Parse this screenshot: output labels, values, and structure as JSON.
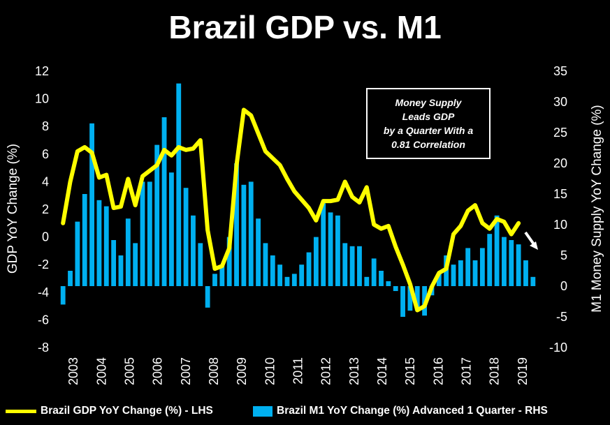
{
  "title": "Brazil GDP vs. M1",
  "annotation": [
    "Money Supply",
    "Leads GDP",
    "by a Quarter With a",
    "0.81 Correlation"
  ],
  "colors": {
    "gdp_line": "#ffff00",
    "m1_bars": "#00b0f0",
    "background": "#000000",
    "arrow": "#ffffff"
  },
  "chart_data": {
    "type": "bar",
    "title": "Brazil GDP vs. M1",
    "xlabel": "",
    "ylabel": "GDP YoY Change (%)",
    "ylabel_right": "M1 Money Supply YoY Change (%)",
    "ylim": [
      -8,
      12
    ],
    "ylim_right": [
      -10,
      35
    ],
    "yticks": [
      "12",
      "10",
      "8",
      "6",
      "4",
      "2",
      "0",
      "-2",
      "-4",
      "-6",
      "-8"
    ],
    "yticks_right": [
      "35",
      "30",
      "25",
      "20",
      "15",
      "10",
      "5",
      "0",
      "-5",
      "-10"
    ],
    "xticks": [
      "2003",
      "2004",
      "2005",
      "2006",
      "2007",
      "2008",
      "2009",
      "2010",
      "2011",
      "2012",
      "2013",
      "2014",
      "2015",
      "2016",
      "2017",
      "2018",
      "2019"
    ],
    "grid": false,
    "legend_position": "bottom",
    "series": [
      {
        "name": "Brazil GDP YoY Change (%) - LHS",
        "type": "line",
        "axis": "left",
        "values": [
          1.0,
          4.0,
          6.2,
          6.5,
          6.1,
          4.3,
          4.5,
          2.1,
          2.2,
          4.2,
          2.3,
          4.4,
          4.8,
          5.2,
          6.3,
          5.9,
          6.5,
          6.3,
          6.4,
          7.0,
          0.5,
          -2.3,
          -2.1,
          -0.8,
          5.2,
          9.2,
          8.8,
          7.5,
          6.2,
          5.7,
          5.2,
          4.2,
          3.3,
          2.7,
          2.1,
          1.2,
          2.6,
          2.6,
          2.7,
          4.0,
          2.9,
          2.5,
          3.6,
          0.9,
          0.6,
          0.8,
          -0.7,
          -2.0,
          -3.4,
          -5.3,
          -5.0,
          -3.6,
          -2.6,
          -2.3,
          0.2,
          0.8,
          1.9,
          2.3,
          1.0,
          0.6,
          1.3,
          1.1,
          0.2,
          1.0
        ]
      },
      {
        "name": "Brazil M1 YoY Change (%) Advanced 1 Quarter - RHS",
        "type": "bar",
        "axis": "right",
        "values": [
          -3.0,
          2.5,
          10.5,
          15.0,
          26.5,
          14.0,
          13.0,
          7.5,
          5.0,
          11.0,
          7.0,
          17.0,
          17.0,
          23.0,
          27.5,
          18.5,
          33.0,
          16.0,
          11.5,
          7.0,
          -3.5,
          2.0,
          3.5,
          8.0,
          20.0,
          16.5,
          17.0,
          11.0,
          7.0,
          5.0,
          3.5,
          1.5,
          2.0,
          3.5,
          5.5,
          8.0,
          13.5,
          12.0,
          11.5,
          7.0,
          6.5,
          6.5,
          1.5,
          4.5,
          2.5,
          0.8,
          -0.8,
          -5.0,
          -4.0,
          -4.0,
          -4.8,
          -1.5,
          2.0,
          5.0,
          3.5,
          4.2,
          6.2,
          4.2,
          6.2,
          8.5,
          11.5,
          8.0,
          7.5,
          6.8,
          4.2,
          1.5
        ]
      }
    ]
  },
  "legend": {
    "gdp_label": "Brazil GDP YoY Change (%) - LHS",
    "m1_label": "Brazil M1 YoY Change (%) Advanced 1 Quarter - RHS"
  }
}
